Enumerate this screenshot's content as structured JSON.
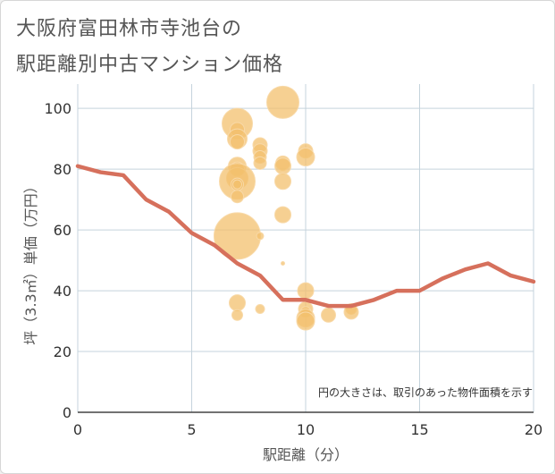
{
  "title_line1": "大阪府富田林市寺池台の",
  "title_line2": "駅距離別中古マンション価格",
  "chart_data": {
    "type": "scatter",
    "xlabel": "駅距離（分）",
    "ylabel": "坪（3.3㎡）単価（万円）",
    "xlim": [
      0,
      20
    ],
    "ylim": [
      0,
      108
    ],
    "x_ticks": [
      "0",
      "5",
      "10",
      "15",
      "20"
    ],
    "y_ticks": [
      "0",
      "20",
      "40",
      "60",
      "80",
      "100"
    ],
    "grid": true,
    "note": "円の大きさは、取引のあった物件面積を示す",
    "bubbles": [
      {
        "x": 7,
        "y": 95,
        "size": 17
      },
      {
        "x": 9,
        "y": 102,
        "size": 18
      },
      {
        "x": 7,
        "y": 93,
        "size": 8
      },
      {
        "x": 7,
        "y": 90,
        "size": 11
      },
      {
        "x": 7,
        "y": 89,
        "size": 8
      },
      {
        "x": 7,
        "y": 81,
        "size": 10
      },
      {
        "x": 7,
        "y": 80,
        "size": 8
      },
      {
        "x": 7,
        "y": 77,
        "size": 12
      },
      {
        "x": 7,
        "y": 76,
        "size": 20
      },
      {
        "x": 7,
        "y": 75,
        "size": 7
      },
      {
        "x": 7,
        "y": 75,
        "size": 5
      },
      {
        "x": 7,
        "y": 71,
        "size": 7
      },
      {
        "x": 7,
        "y": 58,
        "size": 26
      },
      {
        "x": 7,
        "y": 36,
        "size": 9
      },
      {
        "x": 7,
        "y": 32,
        "size": 6
      },
      {
        "x": 8,
        "y": 88,
        "size": 8
      },
      {
        "x": 8,
        "y": 86,
        "size": 8
      },
      {
        "x": 8,
        "y": 84,
        "size": 7
      },
      {
        "x": 8,
        "y": 82,
        "size": 7
      },
      {
        "x": 8,
        "y": 58,
        "size": 4
      },
      {
        "x": 8,
        "y": 34,
        "size": 5
      },
      {
        "x": 9,
        "y": 82,
        "size": 8
      },
      {
        "x": 9,
        "y": 81,
        "size": 9
      },
      {
        "x": 9,
        "y": 76,
        "size": 9
      },
      {
        "x": 9,
        "y": 65,
        "size": 9
      },
      {
        "x": 9,
        "y": 49,
        "size": 2
      },
      {
        "x": 10,
        "y": 86,
        "size": 8
      },
      {
        "x": 10,
        "y": 84,
        "size": 10
      },
      {
        "x": 10,
        "y": 40,
        "size": 9
      },
      {
        "x": 10,
        "y": 34,
        "size": 8
      },
      {
        "x": 10,
        "y": 33,
        "size": 6
      },
      {
        "x": 10,
        "y": 31,
        "size": 10
      },
      {
        "x": 10,
        "y": 30,
        "size": 10
      },
      {
        "x": 11,
        "y": 32,
        "size": 8
      },
      {
        "x": 12,
        "y": 34,
        "size": 6
      },
      {
        "x": 12,
        "y": 33,
        "size": 8
      }
    ],
    "line": {
      "x": [
        0,
        1,
        2,
        3,
        4,
        5,
        6,
        7,
        8,
        9,
        10,
        11,
        12,
        13,
        14,
        15,
        16,
        17,
        18,
        19,
        20
      ],
      "y": [
        81,
        79,
        78,
        70,
        66,
        59,
        55,
        49,
        45,
        37,
        37,
        35,
        35,
        37,
        40,
        40,
        44,
        47,
        49,
        45,
        43
      ]
    },
    "colors": {
      "bubble_fill": "#f3c06e",
      "bubble_stroke": "#f8d9a8",
      "line": "#d6705c",
      "grid": "#c5d3dc",
      "axis_text": "#555555",
      "tick_text": "#333333"
    }
  }
}
